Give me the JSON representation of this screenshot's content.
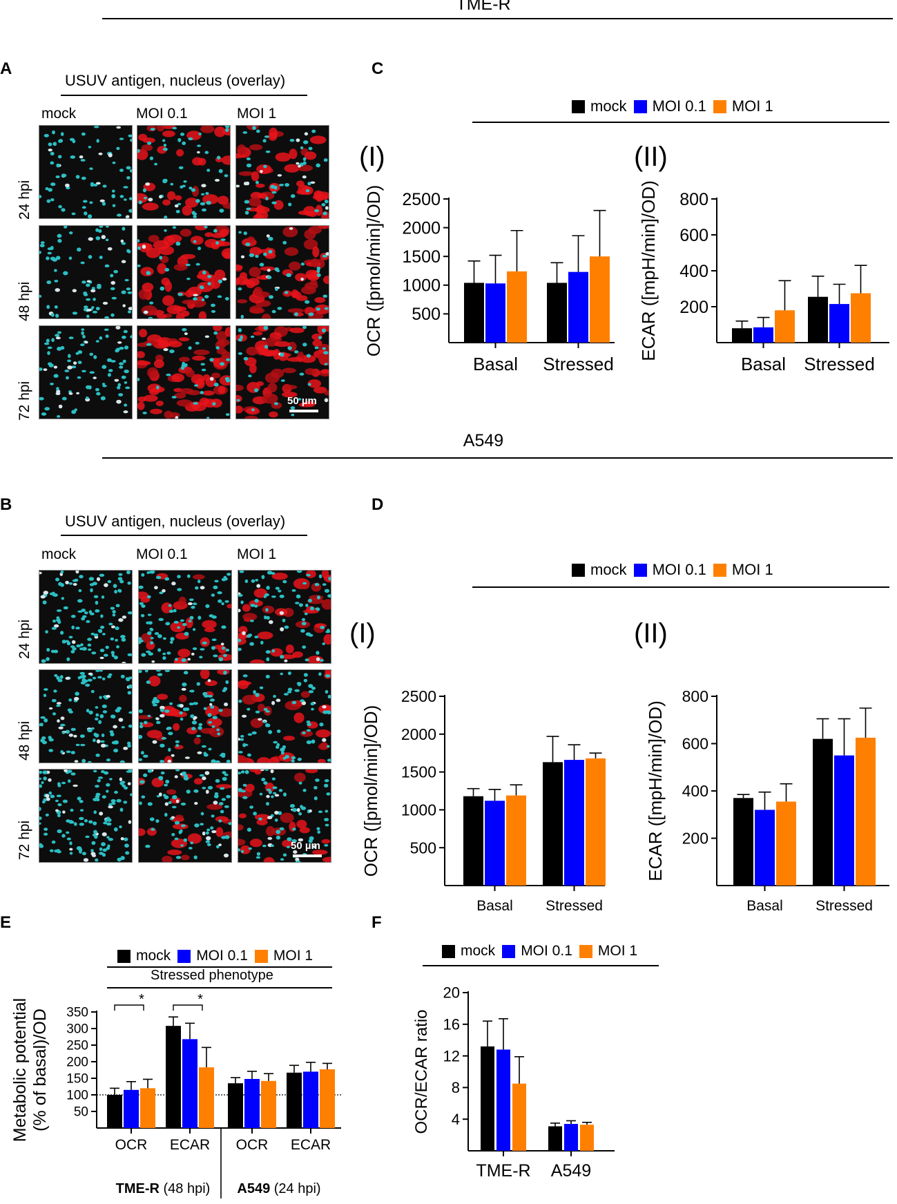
{
  "sections": {
    "top_title": "TME-R",
    "bottom_title": "A549"
  },
  "panels": {
    "A": {
      "label": "A",
      "header": "USUV antigen, nucleus (overlay)",
      "columns": [
        "mock",
        "MOI 0.1",
        "MOI 1"
      ],
      "rows": [
        "24 hpi",
        "48 hpi",
        "72 hpi"
      ],
      "scale_bar": "50 µm"
    },
    "B": {
      "label": "B",
      "header": "USUV antigen, nucleus (overlay)",
      "columns": [
        "mock",
        "MOI 0.1",
        "MOI 1"
      ],
      "rows": [
        "24 hpi",
        "48 hpi",
        "72 hpi"
      ],
      "scale_bar": "50 µm"
    },
    "C": {
      "label": "C"
    },
    "D": {
      "label": "D"
    },
    "E": {
      "label": "E",
      "header": "Stressed phenotype"
    },
    "F": {
      "label": "F"
    }
  },
  "legend": [
    {
      "name": "mock",
      "color": "#000000"
    },
    {
      "name": "MOI 0.1",
      "color": "#0000FF"
    },
    {
      "name": "MOI 1",
      "color": "#FF8000"
    }
  ],
  "colors": {
    "mock": "#000000",
    "moi01": "#0000FF",
    "moi1": "#FF8000"
  },
  "chart_data": [
    {
      "id": "C-I",
      "panel": "C",
      "sub_label": "(I)",
      "type": "bar",
      "ylabel": "OCR ([pmol/min]/OD)",
      "ylim": [
        0,
        2500
      ],
      "yticks": [
        500,
        1000,
        1500,
        2000,
        2500
      ],
      "categories": [
        "Basal",
        "Stressed"
      ],
      "series": [
        {
          "name": "mock",
          "values": [
            1040,
            1040
          ],
          "errors": [
            380,
            350
          ]
        },
        {
          "name": "MOI 0.1",
          "values": [
            1030,
            1230
          ],
          "errors": [
            490,
            630
          ]
        },
        {
          "name": "MOI 1",
          "values": [
            1240,
            1500
          ],
          "errors": [
            710,
            800
          ]
        }
      ]
    },
    {
      "id": "C-II",
      "panel": "C",
      "sub_label": "(II)",
      "type": "bar",
      "ylabel": "ECAR ([mpH/min]/OD)",
      "ylim": [
        0,
        800
      ],
      "yticks": [
        200,
        400,
        600,
        800
      ],
      "categories": [
        "Basal",
        "Stressed"
      ],
      "series": [
        {
          "name": "mock",
          "values": [
            80,
            255
          ],
          "errors": [
            40,
            115
          ]
        },
        {
          "name": "MOI 0.1",
          "values": [
            85,
            215
          ],
          "errors": [
            55,
            110
          ]
        },
        {
          "name": "MOI 1",
          "values": [
            180,
            275
          ],
          "errors": [
            165,
            155
          ]
        }
      ]
    },
    {
      "id": "D-I",
      "panel": "D",
      "sub_label": "(I)",
      "type": "bar",
      "ylabel": "OCR ([pmol/min]/OD)",
      "ylim": [
        0,
        2500
      ],
      "yticks": [
        500,
        1000,
        1500,
        2000,
        2500
      ],
      "categories": [
        "Basal",
        "Stressed"
      ],
      "series": [
        {
          "name": "mock",
          "values": [
            1180,
            1630
          ],
          "errors": [
            100,
            340
          ]
        },
        {
          "name": "MOI 0.1",
          "values": [
            1120,
            1660
          ],
          "errors": [
            150,
            200
          ]
        },
        {
          "name": "MOI 1",
          "values": [
            1190,
            1680
          ],
          "errors": [
            140,
            70
          ]
        }
      ]
    },
    {
      "id": "D-II",
      "panel": "D",
      "sub_label": "(II)",
      "type": "bar",
      "ylabel": "ECAR ([mpH/min]/OD)",
      "ylim": [
        0,
        800
      ],
      "yticks": [
        200,
        400,
        600,
        800
      ],
      "categories": [
        "Basal",
        "Stressed"
      ],
      "series": [
        {
          "name": "mock",
          "values": [
            370,
            620
          ],
          "errors": [
            15,
            85
          ]
        },
        {
          "name": "MOI 0.1",
          "values": [
            320,
            550
          ],
          "errors": [
            75,
            155
          ]
        },
        {
          "name": "MOI 1",
          "values": [
            355,
            625
          ],
          "errors": [
            75,
            125
          ]
        }
      ]
    },
    {
      "id": "E",
      "panel": "E",
      "type": "bar",
      "ylabel": "Metabolic potential\n(% of basal)/OD",
      "ylim": [
        0,
        350
      ],
      "yticks": [
        50,
        100,
        150,
        200,
        250,
        300,
        350
      ],
      "reference_line": 100,
      "categories": [
        "OCR",
        "ECAR",
        "OCR",
        "ECAR"
      ],
      "group_labels": [
        {
          "bold": "TME-R",
          "normal": " (48 hpi)"
        },
        {
          "bold": "A549",
          "normal": " (24 hpi)"
        }
      ],
      "significance": [
        {
          "category": 0,
          "text": "*"
        },
        {
          "category": 1,
          "text": "*"
        }
      ],
      "series": [
        {
          "name": "mock",
          "values": [
            100,
            308,
            135,
            167
          ],
          "errors": [
            20,
            27,
            17,
            22
          ]
        },
        {
          "name": "MOI 0.1",
          "values": [
            115,
            268,
            148,
            170
          ],
          "errors": [
            25,
            48,
            23,
            28
          ]
        },
        {
          "name": "MOI 1",
          "values": [
            120,
            183,
            142,
            177
          ],
          "errors": [
            27,
            60,
            22,
            18
          ]
        }
      ]
    },
    {
      "id": "F",
      "panel": "F",
      "type": "bar",
      "ylabel": "OCR/ECAR ratio",
      "ylim": [
        0,
        20
      ],
      "yticks": [
        4,
        8,
        12,
        16,
        20
      ],
      "categories": [
        "TME-R",
        "A549"
      ],
      "series": [
        {
          "name": "mock",
          "values": [
            13.2,
            3.1
          ],
          "errors": [
            3.2,
            0.4
          ]
        },
        {
          "name": "MOI 0.1",
          "values": [
            12.8,
            3.4
          ],
          "errors": [
            3.9,
            0.4
          ]
        },
        {
          "name": "MOI 1",
          "values": [
            8.5,
            3.3
          ],
          "errors": [
            3.4,
            0.3
          ]
        }
      ]
    }
  ]
}
